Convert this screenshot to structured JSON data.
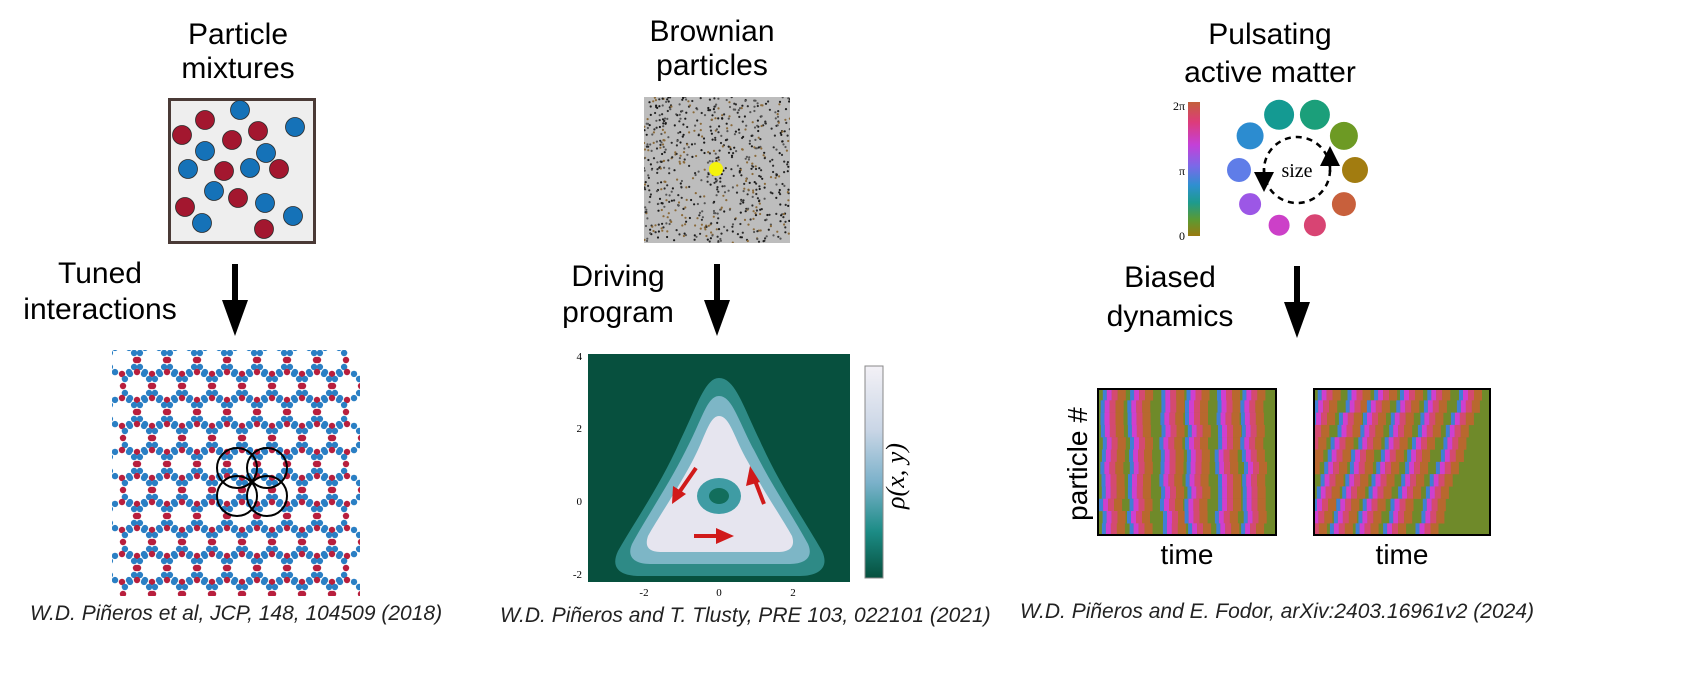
{
  "panels": [
    {
      "title_line1": "Particle",
      "title_line2": "mixtures",
      "side_line1": "Tuned",
      "side_line2": "interactions",
      "citation": "W.D. Piñeros et al, JCP,  148, 104509 (2018)"
    },
    {
      "title_line1": "Brownian",
      "title_line2": "particles",
      "side_line1": "Driving",
      "side_line2": "program",
      "citation": "W.D. Piñeros and T. Tlusty, PRE 103, 022101 (2021)",
      "x_ticks": [
        "-2",
        "0",
        "2"
      ],
      "y_ticks": [
        "4",
        "2",
        "0",
        "-2"
      ],
      "colorbar_label": "ρ(x, y)"
    },
    {
      "title_line1": "Pulsating",
      "title_line2": "active matter",
      "side_line1": "Biased",
      "side_line2": "dynamics",
      "citation": "W.D. Piñeros and E. Fodor, arXiv:2403.16961v2 (2024)",
      "phase_ticks": [
        "2π",
        "π",
        "0"
      ],
      "cycle_label": "size",
      "y_label": "particle #",
      "x_label_left": "time",
      "x_label_right": "time"
    }
  ],
  "colors": {
    "red_particle": "#a3172f",
    "blue_particle": "#1572b8",
    "brown_bg": "#bfbfbf",
    "tracer": "#f4f20c",
    "density_dark": "#07503e",
    "arrow_red": "#d01a1a"
  }
}
